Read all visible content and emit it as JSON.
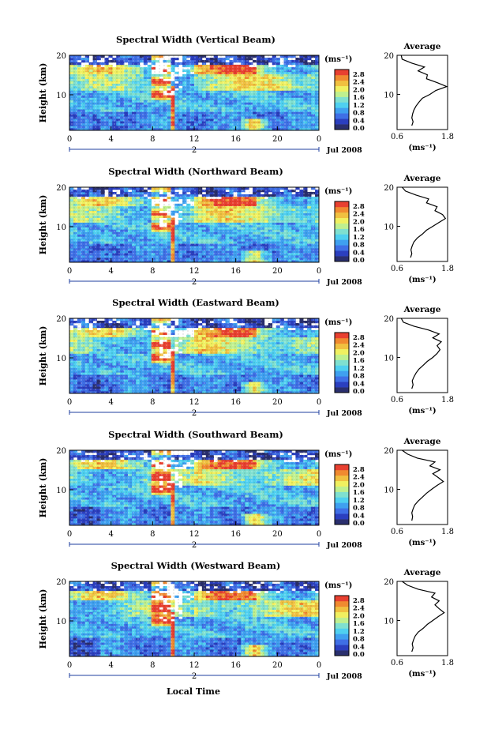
{
  "figure": {
    "x_axis_label": "Local Time",
    "date_label": "Jul 2008",
    "day_marker": "2",
    "height_label": "Height (km)",
    "unit_label": "(ms⁻¹)",
    "avg_unit_label": "(ms⁻¹)",
    "avg_title": "Average"
  },
  "colors": {
    "scale": [
      "#2a2f6e",
      "#2b3fbf",
      "#3f6fe6",
      "#3fa0f0",
      "#4fd0f0",
      "#7fe0d0",
      "#bff08f",
      "#f0f060",
      "#f0c040",
      "#f08a30",
      "#e84030"
    ]
  },
  "colorbar": {
    "ticks": [
      "0.0",
      "0.4",
      "0.8",
      "1.2",
      "1.6",
      "2.0",
      "2.4",
      "2.8"
    ]
  },
  "chart_data": [
    {
      "type": "heatmap",
      "title": "Spectral Width (Vertical Beam)",
      "xlabel": "Local Time",
      "ylabel": "Height (km)",
      "x_ticks": [
        "0",
        "4",
        "8",
        "12",
        "16",
        "20",
        "0"
      ],
      "y_ticks": [
        "10",
        "20"
      ],
      "xlim": [
        0,
        24
      ],
      "ylim": [
        1,
        20
      ],
      "colorbar_range": [
        0,
        2.8
      ],
      "average_profile": {
        "title": "Average",
        "x_ticks": [
          "0.6",
          "1.8"
        ],
        "xlim": [
          0.6,
          1.8
        ],
        "y_ticks": [
          "10",
          "20"
        ],
        "height_km": [
          2,
          3,
          4,
          5,
          6,
          7,
          8,
          9,
          10,
          11,
          12,
          13,
          14,
          15,
          16,
          17,
          18,
          19,
          20
        ],
        "width": [
          0.95,
          0.98,
          0.95,
          0.97,
          1.0,
          1.05,
          1.12,
          1.2,
          1.38,
          1.52,
          1.78,
          1.55,
          1.3,
          1.32,
          1.1,
          1.25,
          0.95,
          0.72,
          0.7
        ]
      }
    },
    {
      "type": "heatmap",
      "title": "Spectral Width (Northward Beam)",
      "xlabel": "Local Time",
      "ylabel": "Height (km)",
      "x_ticks": [
        "0",
        "4",
        "8",
        "12",
        "16",
        "20",
        "0"
      ],
      "y_ticks": [
        "10",
        "20"
      ],
      "xlim": [
        0,
        24
      ],
      "ylim": [
        1,
        20
      ],
      "colorbar_range": [
        0,
        2.8
      ],
      "average_profile": {
        "title": "Average",
        "x_ticks": [
          "0.6",
          "1.8"
        ],
        "xlim": [
          0.6,
          1.8
        ],
        "y_ticks": [
          "10",
          "20"
        ],
        "height_km": [
          2,
          3,
          4,
          5,
          6,
          7,
          8,
          9,
          10,
          11,
          12,
          13,
          14,
          15,
          16,
          17,
          18,
          19,
          20
        ],
        "width": [
          0.92,
          0.95,
          0.93,
          0.96,
          1.0,
          1.08,
          1.2,
          1.3,
          1.45,
          1.6,
          1.75,
          1.68,
          1.5,
          1.55,
          1.3,
          1.35,
          1.05,
          0.8,
          0.72
        ]
      }
    },
    {
      "type": "heatmap",
      "title": "Spectral Width (Eastward Beam)",
      "xlabel": "Local Time",
      "ylabel": "Height (km)",
      "x_ticks": [
        "0",
        "4",
        "8",
        "12",
        "16",
        "20",
        "0"
      ],
      "y_ticks": [
        "10",
        "20"
      ],
      "xlim": [
        0,
        24
      ],
      "ylim": [
        1,
        20
      ],
      "colorbar_range": [
        0,
        2.8
      ],
      "average_profile": {
        "title": "Average",
        "x_ticks": [
          "0.6",
          "1.8"
        ],
        "xlim": [
          0.6,
          1.8
        ],
        "y_ticks": [
          "10",
          "20"
        ],
        "height_km": [
          2,
          3,
          4,
          5,
          6,
          7,
          8,
          9,
          10,
          11,
          12,
          13,
          14,
          15,
          16,
          17,
          18,
          19,
          20
        ],
        "width": [
          0.95,
          0.98,
          0.96,
          1.0,
          1.05,
          1.12,
          1.22,
          1.32,
          1.45,
          1.55,
          1.62,
          1.55,
          1.65,
          1.45,
          1.6,
          1.35,
          1.0,
          0.75,
          0.7
        ]
      }
    },
    {
      "type": "heatmap",
      "title": "Spectral Width (Southward Beam)",
      "xlabel": "Local Time",
      "ylabel": "Height (km)",
      "x_ticks": [
        "0",
        "4",
        "8",
        "12",
        "16",
        "20",
        "0"
      ],
      "y_ticks": [
        "10",
        "20"
      ],
      "xlim": [
        0,
        24
      ],
      "ylim": [
        1,
        20
      ],
      "colorbar_range": [
        0,
        2.8
      ],
      "average_profile": {
        "title": "Average",
        "x_ticks": [
          "0.6",
          "1.8"
        ],
        "xlim": [
          0.6,
          1.8
        ],
        "y_ticks": [
          "10",
          "20"
        ],
        "height_km": [
          2,
          3,
          4,
          5,
          6,
          7,
          8,
          9,
          10,
          11,
          12,
          13,
          14,
          15,
          16,
          17,
          18,
          19,
          20
        ],
        "width": [
          0.95,
          0.97,
          0.95,
          0.98,
          1.02,
          1.1,
          1.2,
          1.3,
          1.42,
          1.55,
          1.7,
          1.58,
          1.45,
          1.62,
          1.38,
          1.5,
          1.08,
          0.85,
          0.72
        ]
      }
    },
    {
      "type": "heatmap",
      "title": "Spectral Width (Westward Beam)",
      "xlabel": "Local Time",
      "ylabel": "Height (km)",
      "x_ticks": [
        "0",
        "4",
        "8",
        "12",
        "16",
        "20",
        "0"
      ],
      "y_ticks": [
        "10",
        "20"
      ],
      "xlim": [
        0,
        24
      ],
      "ylim": [
        1,
        20
      ],
      "colorbar_range": [
        0,
        2.8
      ],
      "average_profile": {
        "title": "Average",
        "x_ticks": [
          "0.6",
          "1.8"
        ],
        "xlim": [
          0.6,
          1.8
        ],
        "y_ticks": [
          "10",
          "20"
        ],
        "height_km": [
          2,
          3,
          4,
          5,
          6,
          7,
          8,
          9,
          10,
          11,
          12,
          13,
          14,
          15,
          16,
          17,
          18,
          19,
          20
        ],
        "width": [
          0.95,
          0.98,
          0.96,
          0.99,
          1.03,
          1.1,
          1.22,
          1.32,
          1.45,
          1.58,
          1.72,
          1.6,
          1.5,
          1.6,
          1.42,
          1.5,
          1.1,
          0.85,
          0.72
        ]
      }
    }
  ]
}
